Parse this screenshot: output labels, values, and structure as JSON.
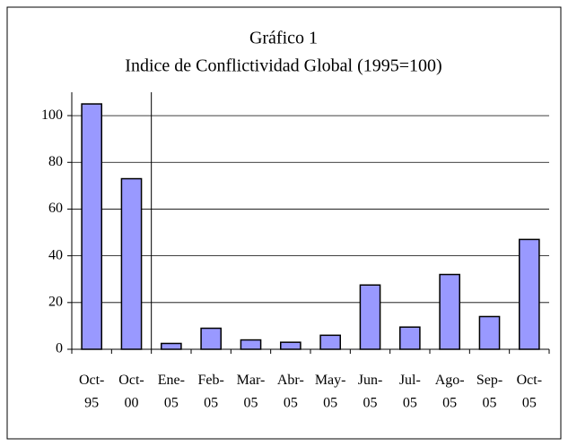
{
  "chart_data": {
    "type": "bar",
    "title": "Gráfico 1",
    "subtitle": "Indice de Conflictividad Global (1995=100)",
    "categories": [
      "Oct-95",
      "Oct-00",
      "Ene-05",
      "Feb-05",
      "Mar-05",
      "Abr-05",
      "May-05",
      "Jun-05",
      "Jul-05",
      "Ago-05",
      "Sep-05",
      "Oct-05"
    ],
    "values": [
      105,
      73,
      2.5,
      9,
      4,
      3,
      6,
      27.5,
      9.5,
      32,
      14,
      47
    ],
    "color": "#9999ff",
    "ylim": [
      0,
      110
    ],
    "yticks": [
      0,
      20,
      40,
      60,
      80,
      100
    ],
    "grid": true
  }
}
